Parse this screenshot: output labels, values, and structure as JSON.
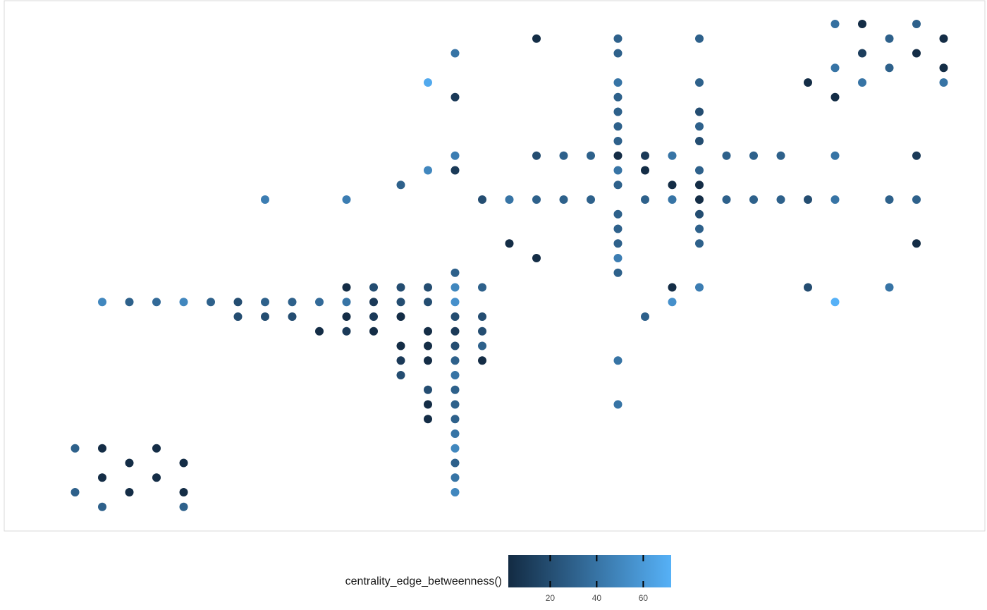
{
  "chart_data": {
    "type": "scatter",
    "title": "",
    "xlabel": "",
    "ylabel": "",
    "grid": false,
    "legend_placement": "bottom",
    "xlim": [
      1,
      35
    ],
    "ylim": [
      2,
      36
    ],
    "point_color_low": "#132b43",
    "point_color_high": "#56b1f7",
    "panel_border_color": "#d9d9d9",
    "color_scale": {
      "title": "centrality_edge_betweenness()",
      "min": 2,
      "max": 72,
      "ticks": [
        20,
        40,
        60
      ],
      "tick_labels": [
        "20",
        "40",
        "60"
      ]
    },
    "points": [
      [
        30,
        36,
        38
      ],
      [
        31,
        36,
        3
      ],
      [
        33,
        36,
        30
      ],
      [
        19,
        35,
        3
      ],
      [
        22,
        35,
        30
      ],
      [
        25,
        35,
        30
      ],
      [
        32,
        35,
        30
      ],
      [
        34,
        35,
        3
      ],
      [
        16,
        34,
        40
      ],
      [
        22,
        34,
        30
      ],
      [
        31,
        34,
        12
      ],
      [
        33,
        34,
        3
      ],
      [
        30,
        33,
        40
      ],
      [
        32,
        33,
        30
      ],
      [
        34,
        33,
        3
      ],
      [
        15,
        32,
        68
      ],
      [
        22,
        32,
        40
      ],
      [
        25,
        32,
        30
      ],
      [
        29,
        32,
        3
      ],
      [
        31,
        32,
        40
      ],
      [
        34,
        32,
        40
      ],
      [
        16,
        31,
        10
      ],
      [
        22,
        31,
        30
      ],
      [
        30,
        31,
        3
      ],
      [
        22,
        30,
        30
      ],
      [
        25,
        30,
        20
      ],
      [
        22,
        29,
        30
      ],
      [
        25,
        29,
        30
      ],
      [
        22,
        28,
        30
      ],
      [
        25,
        28,
        20
      ],
      [
        16,
        27,
        45
      ],
      [
        19,
        27,
        20
      ],
      [
        20,
        27,
        30
      ],
      [
        21,
        27,
        30
      ],
      [
        22,
        27,
        3
      ],
      [
        23,
        27,
        10
      ],
      [
        24,
        27,
        40
      ],
      [
        26,
        27,
        30
      ],
      [
        27,
        27,
        30
      ],
      [
        28,
        27,
        30
      ],
      [
        30,
        27,
        40
      ],
      [
        33,
        27,
        10
      ],
      [
        15,
        26,
        50
      ],
      [
        16,
        26,
        10
      ],
      [
        22,
        26,
        40
      ],
      [
        23,
        26,
        3
      ],
      [
        25,
        26,
        30
      ],
      [
        14,
        25,
        30
      ],
      [
        22,
        25,
        30
      ],
      [
        24,
        25,
        3
      ],
      [
        25,
        25,
        3
      ],
      [
        9,
        24,
        45
      ],
      [
        12,
        24,
        45
      ],
      [
        17,
        24,
        20
      ],
      [
        18,
        24,
        40
      ],
      [
        19,
        24,
        30
      ],
      [
        20,
        24,
        30
      ],
      [
        21,
        24,
        30
      ],
      [
        23,
        24,
        30
      ],
      [
        24,
        24,
        40
      ],
      [
        25,
        24,
        3
      ],
      [
        26,
        24,
        30
      ],
      [
        27,
        24,
        30
      ],
      [
        28,
        24,
        30
      ],
      [
        29,
        24,
        20
      ],
      [
        30,
        24,
        40
      ],
      [
        32,
        24,
        30
      ],
      [
        33,
        24,
        30
      ],
      [
        22,
        23,
        30
      ],
      [
        25,
        23,
        20
      ],
      [
        22,
        22,
        30
      ],
      [
        25,
        22,
        30
      ],
      [
        18,
        21,
        3
      ],
      [
        22,
        21,
        30
      ],
      [
        25,
        21,
        30
      ],
      [
        33,
        21,
        3
      ],
      [
        19,
        20,
        3
      ],
      [
        22,
        20,
        45
      ],
      [
        16,
        19,
        30
      ],
      [
        22,
        19,
        30
      ],
      [
        12,
        18,
        3
      ],
      [
        13,
        18,
        20
      ],
      [
        14,
        18,
        20
      ],
      [
        15,
        18,
        20
      ],
      [
        16,
        18,
        50
      ],
      [
        17,
        18,
        30
      ],
      [
        24,
        18,
        3
      ],
      [
        25,
        18,
        45
      ],
      [
        29,
        18,
        20
      ],
      [
        32,
        18,
        40
      ],
      [
        3,
        17,
        50
      ],
      [
        4,
        17,
        30
      ],
      [
        5,
        17,
        35
      ],
      [
        6,
        17,
        50
      ],
      [
        7,
        17,
        30
      ],
      [
        8,
        17,
        20
      ],
      [
        9,
        17,
        30
      ],
      [
        10,
        17,
        30
      ],
      [
        11,
        17,
        35
      ],
      [
        12,
        17,
        40
      ],
      [
        13,
        17,
        10
      ],
      [
        14,
        17,
        20
      ],
      [
        15,
        17,
        20
      ],
      [
        16,
        17,
        55
      ],
      [
        24,
        17,
        55
      ],
      [
        30,
        17,
        72
      ],
      [
        8,
        16,
        20
      ],
      [
        9,
        16,
        20
      ],
      [
        10,
        16,
        20
      ],
      [
        12,
        16,
        3
      ],
      [
        13,
        16,
        10
      ],
      [
        14,
        16,
        3
      ],
      [
        16,
        16,
        20
      ],
      [
        17,
        16,
        20
      ],
      [
        23,
        16,
        30
      ],
      [
        11,
        15,
        3
      ],
      [
        12,
        15,
        10
      ],
      [
        13,
        15,
        3
      ],
      [
        15,
        15,
        3
      ],
      [
        16,
        15,
        10
      ],
      [
        17,
        15,
        20
      ],
      [
        14,
        14,
        3
      ],
      [
        15,
        14,
        3
      ],
      [
        16,
        14,
        20
      ],
      [
        17,
        14,
        30
      ],
      [
        14,
        13,
        10
      ],
      [
        15,
        13,
        3
      ],
      [
        16,
        13,
        30
      ],
      [
        17,
        13,
        3
      ],
      [
        22,
        13,
        40
      ],
      [
        14,
        12,
        20
      ],
      [
        16,
        12,
        40
      ],
      [
        15,
        11,
        20
      ],
      [
        16,
        11,
        30
      ],
      [
        15,
        10,
        3
      ],
      [
        16,
        10,
        30
      ],
      [
        22,
        10,
        40
      ],
      [
        15,
        9,
        3
      ],
      [
        16,
        9,
        30
      ],
      [
        16,
        8,
        40
      ],
      [
        2,
        7,
        30
      ],
      [
        3,
        7,
        3
      ],
      [
        5,
        7,
        3
      ],
      [
        16,
        7,
        50
      ],
      [
        4,
        6,
        3
      ],
      [
        6,
        6,
        3
      ],
      [
        16,
        6,
        30
      ],
      [
        3,
        5,
        3
      ],
      [
        5,
        5,
        3
      ],
      [
        16,
        5,
        40
      ],
      [
        2,
        4,
        30
      ],
      [
        4,
        4,
        3
      ],
      [
        6,
        4,
        3
      ],
      [
        16,
        4,
        50
      ],
      [
        3,
        3,
        30
      ],
      [
        6,
        3,
        30
      ]
    ]
  }
}
